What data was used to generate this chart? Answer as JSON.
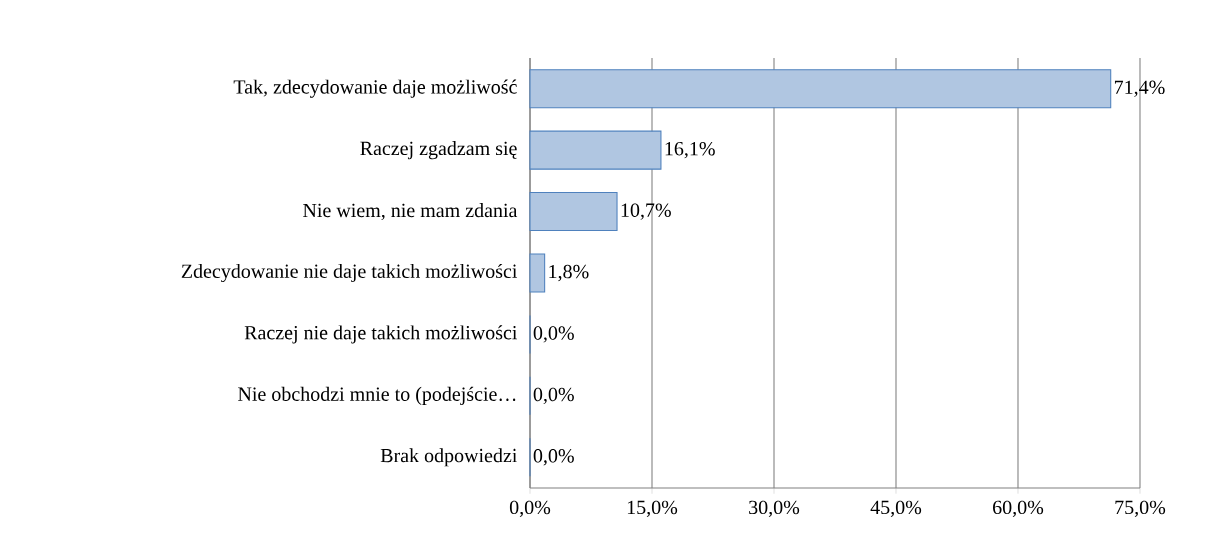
{
  "chart_data": {
    "type": "bar",
    "orientation": "horizontal",
    "categories": [
      "Tak, zdecydowanie daje możliwość",
      "Raczej zgadzam się",
      "Nie wiem, nie mam zdania",
      "Zdecydowanie nie daje takich możliwości",
      "Raczej nie daje takich możliwości",
      "Nie obchodzi mnie to (podejście…",
      "Brak odpowiedzi"
    ],
    "values": [
      71.4,
      16.1,
      10.7,
      1.8,
      0.0,
      0.0,
      0.0
    ],
    "value_labels": [
      "71,4%",
      "16,1%",
      "10,7%",
      "1,8%",
      "0,0%",
      "0,0%",
      "0,0%"
    ],
    "color": "#4f81bd",
    "xlim": [
      0,
      75
    ],
    "xticks": [
      {
        "value": 0,
        "label": "0,0%"
      },
      {
        "value": 15,
        "label": "15,0%"
      },
      {
        "value": 30,
        "label": "30,0%"
      },
      {
        "value": 45,
        "label": "45,0%"
      },
      {
        "value": 60,
        "label": "60,0%"
      },
      {
        "value": 75,
        "label": "75,0%"
      }
    ],
    "grid": "x"
  }
}
